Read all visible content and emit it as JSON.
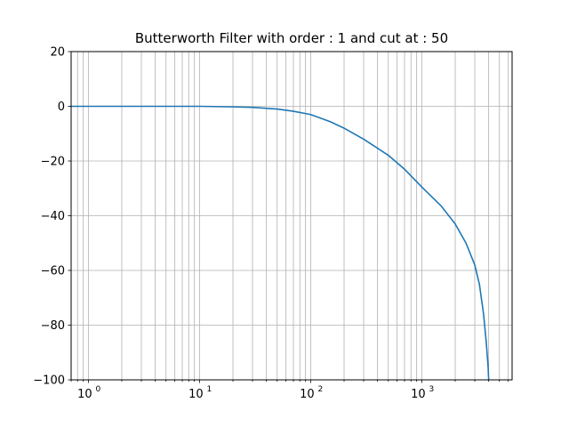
{
  "chart_data": {
    "type": "line",
    "title": "Butterworth Filter with order : 1 and cut at : 50",
    "xlabel": "",
    "ylabel": "",
    "xscale": "log",
    "xlim": [
      0.7,
      6500
    ],
    "ylim": [
      -100,
      20
    ],
    "grid": true,
    "grid_minor_x": true,
    "legend": "none",
    "x_ticks": [
      {
        "value": 1,
        "base": "10",
        "exp": "0"
      },
      {
        "value": 10,
        "base": "10",
        "exp": "1"
      },
      {
        "value": 100,
        "base": "10",
        "exp": "2"
      },
      {
        "value": 1000,
        "base": "10",
        "exp": "3"
      }
    ],
    "y_ticks": [
      {
        "value": 20,
        "label": "20"
      },
      {
        "value": 0,
        "label": "0"
      },
      {
        "value": -20,
        "label": "−20"
      },
      {
        "value": -40,
        "label": "−40"
      },
      {
        "value": -60,
        "label": "−60"
      },
      {
        "value": -80,
        "label": "−80"
      },
      {
        "value": -100,
        "label": "−100"
      }
    ],
    "series": [
      {
        "color": "#1f77b4",
        "x": [
          0.7,
          1,
          3,
          10,
          20,
          30,
          50,
          70,
          100,
          150,
          200,
          300,
          500,
          700,
          1000,
          1500,
          2000,
          2500,
          3000,
          3300,
          3600,
          3800,
          3950,
          4000
        ],
        "y": [
          0,
          0,
          0,
          0,
          -0.2,
          -0.4,
          -1.0,
          -1.8,
          -3.0,
          -5.6,
          -8.0,
          -12.0,
          -17.9,
          -23.0,
          -29.5,
          -36.5,
          -43.0,
          -50.0,
          -58.0,
          -65.0,
          -76.0,
          -86.0,
          -95.0,
          -100.0
        ]
      }
    ]
  }
}
